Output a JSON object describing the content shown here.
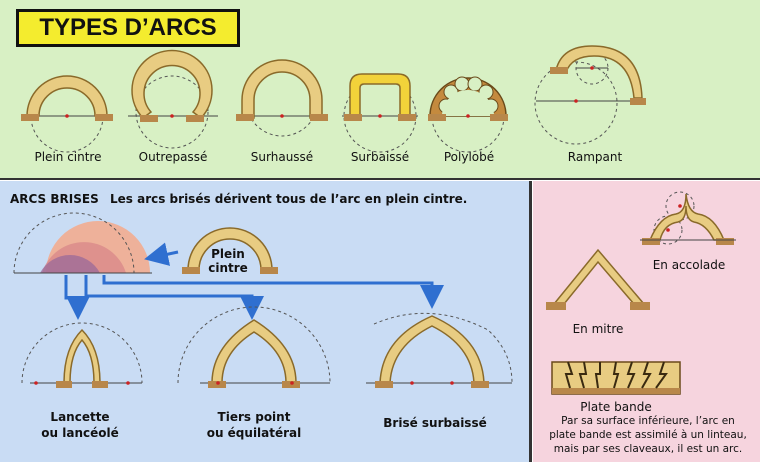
{
  "title": "TYPES D’ARCS",
  "top_arcs": [
    {
      "label": "Plein cintre"
    },
    {
      "label": "Outrepassé"
    },
    {
      "label": "Surhaussé"
    },
    {
      "label": "Surbaissé"
    },
    {
      "label": "Polylobé"
    },
    {
      "label": "Rampant"
    }
  ],
  "arcs_brises": {
    "heading": "ARCS BRISES",
    "subtitle": "Les arcs brisés dérivent tous de l’arc en plein cintre.",
    "source_label_line1": "Plein",
    "source_label_line2": "cintre",
    "variants": [
      {
        "line1": "Lancette",
        "line2": "ou lancéolé"
      },
      {
        "line1": "Tiers point",
        "line2": "ou équilatéral"
      },
      {
        "line1": "Brisé surbaissé",
        "line2": ""
      }
    ]
  },
  "right_panel": {
    "accolade_label": "En accolade",
    "mitre_label": "En mitre",
    "plate_bande_label": "Plate bande",
    "note": "Par sa surface inférieure, l’arc en plate bande est assimilé à un linteau, mais par ses claveaux, il est un arc."
  },
  "colors": {
    "stone": "#e8cc82",
    "stone_edge": "#8a6a2a",
    "impost": "#b8874a",
    "surbaisse_yellow": "#f2d23a",
    "polylobe_brown": "#c48a3e",
    "arrow_blue": "#2f6fd0",
    "construction_red": "#cc2222"
  }
}
